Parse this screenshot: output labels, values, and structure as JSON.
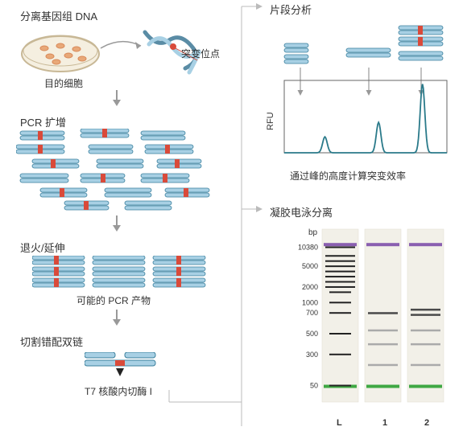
{
  "left": {
    "step1_title": "分离基因组 DNA",
    "target_cell": "目的细胞",
    "mutation_site": "突变位点",
    "step2_title": "PCR 扩增",
    "step3_title": "退火/延伸",
    "step3_sub": "可能的 PCR 产物",
    "step4_title": "切割错配双链",
    "step4_enzyme": "T7 核酸内切酶 I"
  },
  "right_top": {
    "title": "片段分析",
    "yaxis": "RFU",
    "caption": "通过峰的高度计算突变效率"
  },
  "right_bottom": {
    "title": "凝胶电泳分离",
    "unit": "bp",
    "ladder": [
      "10380",
      "5000",
      "2000",
      "1000",
      "700",
      "500",
      "300",
      "50"
    ],
    "lanes": [
      "L",
      "1",
      "2"
    ]
  },
  "colors": {
    "dna_body": "#a8d0e4",
    "dna_edge": "#3a7f9c",
    "dna_dark": "#5a8ca5",
    "mutation": "#d94a3a",
    "dish_rim": "#c8b896",
    "dish_fill": "#f5efe0",
    "cell": "#d88a5a",
    "text": "#333333",
    "chart_line": "#2a7a8a",
    "chart_axis": "#666",
    "gel_bg": "#f9f8f4",
    "gel_lane": "#f2f0e8",
    "gel_band_purple": "#8a5fb0",
    "gel_band_green": "#3fa843",
    "gel_band_dark": "#4a4a4a",
    "gel_band_gray": "#aaa",
    "arrow_gray": "#999"
  },
  "fonts": {
    "title": 13,
    "label": 12,
    "small": 10,
    "tiny": 9
  },
  "chart": {
    "peaks_x": [
      0.25,
      0.58,
      0.85
    ],
    "peaks_h": [
      0.22,
      0.42,
      0.95
    ],
    "peaks_w": [
      0.04,
      0.04,
      0.04
    ]
  },
  "gel": {
    "ladder_y": [
      0.1,
      0.15,
      0.18,
      0.21,
      0.24,
      0.27,
      0.3,
      0.33,
      0.36,
      0.42,
      0.48,
      0.6,
      0.72,
      0.9
    ],
    "ladder_num_idx": {
      "0": 0,
      "1": 3,
      "2": 7,
      "3": 9,
      "4": 10,
      "5": 11,
      "6": 12,
      "7": 13
    },
    "lane1_bands": [
      {
        "y": 0.48,
        "c": "dark"
      },
      {
        "y": 0.58,
        "c": "gray"
      },
      {
        "y": 0.66,
        "c": "gray"
      },
      {
        "y": 0.78,
        "c": "gray"
      }
    ],
    "lane2_bands": [
      {
        "y": 0.46,
        "c": "dark"
      },
      {
        "y": 0.49,
        "c": "dark"
      },
      {
        "y": 0.58,
        "c": "gray"
      },
      {
        "y": 0.66,
        "c": "gray"
      },
      {
        "y": 0.78,
        "c": "gray"
      }
    ],
    "top_y": 0.08,
    "bot_y": 0.9
  }
}
